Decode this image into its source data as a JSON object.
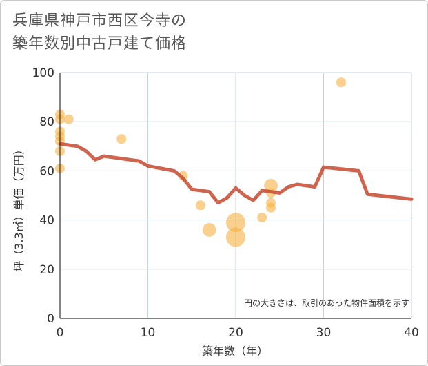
{
  "chart_data": {
    "type": "scatter",
    "title_lines": [
      "兵庫県神戸市西区今寺の",
      "築年数別中古戸建て価格"
    ],
    "xlabel": "築年数（年）",
    "ylabel": "坪（3.3㎡）単価（万円）",
    "xlim": [
      0,
      40
    ],
    "ylim": [
      0,
      100
    ],
    "xticks": [
      0,
      10,
      20,
      30,
      40
    ],
    "yticks": [
      0,
      20,
      40,
      60,
      80,
      100
    ],
    "grid": true,
    "note": "円の大きさは、取引のあった物件面積を示す",
    "colors": {
      "bubble": "#f5b041",
      "line": "#c9533a",
      "grid": "#c5d3e0",
      "axis": "#333333"
    },
    "points": [
      {
        "x": 0,
        "y": 83,
        "size": 1
      },
      {
        "x": 0,
        "y": 81,
        "size": 1
      },
      {
        "x": 1,
        "y": 81,
        "size": 1
      },
      {
        "x": 0,
        "y": 76,
        "size": 1
      },
      {
        "x": 0,
        "y": 74,
        "size": 1
      },
      {
        "x": 0,
        "y": 72,
        "size": 1
      },
      {
        "x": 0,
        "y": 68,
        "size": 1
      },
      {
        "x": 0,
        "y": 61,
        "size": 1
      },
      {
        "x": 7,
        "y": 73,
        "size": 1
      },
      {
        "x": 14,
        "y": 58,
        "size": 1
      },
      {
        "x": 16,
        "y": 46,
        "size": 1
      },
      {
        "x": 17,
        "y": 36,
        "size": 2
      },
      {
        "x": 20,
        "y": 39,
        "size": 4
      },
      {
        "x": 20,
        "y": 33,
        "size": 4
      },
      {
        "x": 23,
        "y": 41,
        "size": 1
      },
      {
        "x": 24,
        "y": 54,
        "size": 2
      },
      {
        "x": 24,
        "y": 51,
        "size": 1
      },
      {
        "x": 24,
        "y": 47,
        "size": 1
      },
      {
        "x": 24,
        "y": 45,
        "size": 1
      },
      {
        "x": 32,
        "y": 96,
        "size": 1
      }
    ],
    "trend": {
      "x": [
        0,
        2,
        3,
        4,
        5,
        9,
        10,
        13,
        14,
        15,
        17,
        18,
        19,
        20,
        21,
        22,
        23,
        24,
        25,
        26,
        27,
        29,
        30,
        34,
        35,
        40
      ],
      "y": [
        71,
        70,
        68,
        64.5,
        66,
        64,
        62,
        60,
        57,
        52.5,
        51.5,
        47,
        49,
        53,
        50,
        48,
        52,
        51.5,
        51,
        53.5,
        54.5,
        53.5,
        61.5,
        60,
        50.5,
        48.5
      ]
    }
  }
}
